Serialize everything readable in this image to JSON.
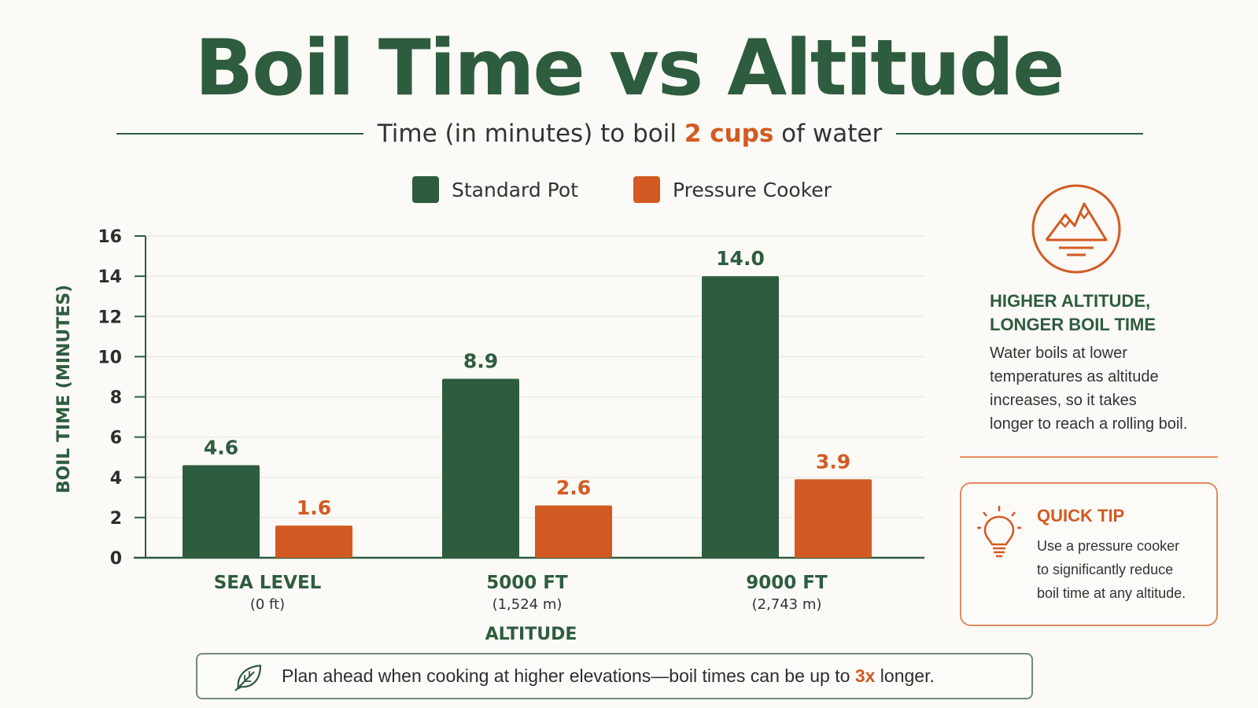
{
  "title": "Boil Time vs Altitude",
  "subtitle": {
    "prefix": "Time (in minutes) to boil ",
    "highlight": "2 cups",
    "suffix": " of water"
  },
  "colors": {
    "standard": "#2e5c3f",
    "pressure": "#d25a22",
    "axis": "#2e5c3f",
    "grid": "#e6e4dc"
  },
  "chart_data": {
    "type": "bar",
    "categories": [
      "SEA LEVEL",
      "5000 FT",
      "9000 FT"
    ],
    "category_sublabels": [
      "(0 ft)",
      "(1,524 m)",
      "(2,743 m)"
    ],
    "series": [
      {
        "name": "Standard Pot",
        "values": [
          4.6,
          8.9,
          14.0
        ],
        "labels": [
          "4.6",
          "8.9",
          "14.0"
        ],
        "color": "#2e5c3f"
      },
      {
        "name": "Pressure Cooker",
        "values": [
          1.6,
          2.6,
          3.9
        ],
        "labels": [
          "1.6",
          "2.6",
          "3.9"
        ],
        "color": "#d25a22"
      }
    ],
    "xlabel": "ALTITUDE",
    "ylabel": "BOIL TIME (MINUTES)",
    "ylim": [
      0,
      16
    ],
    "yticks": [
      0,
      2,
      4,
      6,
      8,
      10,
      12,
      14,
      16
    ],
    "grid": true,
    "legend_position": "top"
  },
  "side_panel": {
    "icon": "mountain-icon",
    "heading_line1": "HIGHER ALTITUDE,",
    "heading_line2": "LONGER BOIL TIME",
    "body_lines": [
      "Water boils at lower",
      "temperatures as altitude",
      "increases, so it takes",
      "longer to reach a rolling boil."
    ]
  },
  "quick_tip": {
    "icon": "lightbulb-icon",
    "title": "QUICK TIP",
    "body_lines": [
      "Use a pressure cooker",
      "to significantly reduce",
      "boil time at any altitude."
    ]
  },
  "footer_note": {
    "icon": "leaf-icon",
    "prefix": "Plan ahead when cooking at higher elevations—boil times can be up to ",
    "highlight": "3x",
    "suffix": " longer."
  }
}
